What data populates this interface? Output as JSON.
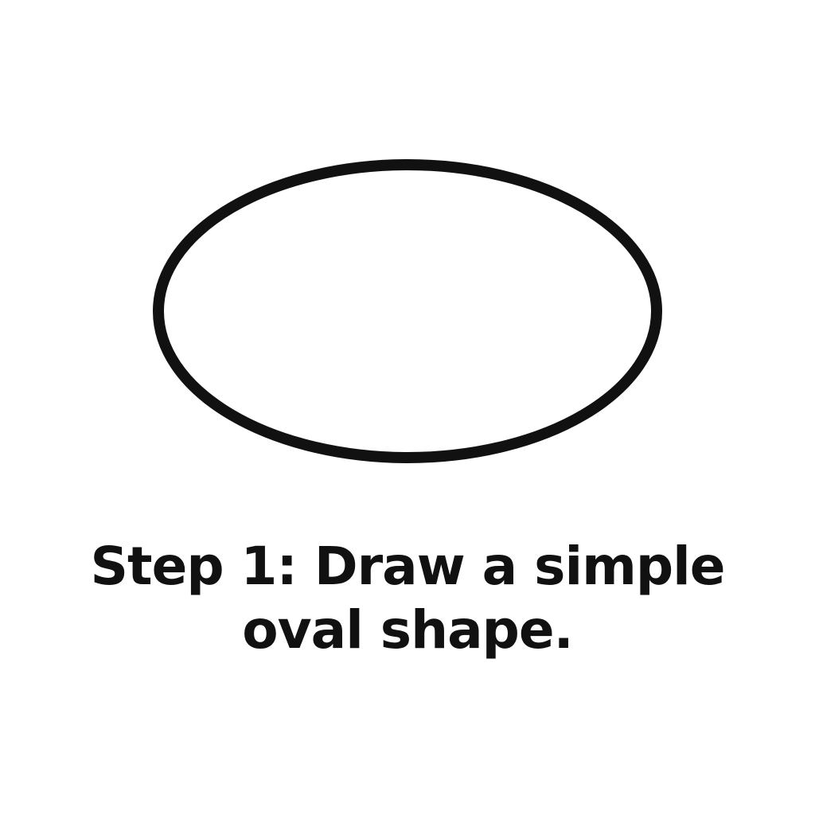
{
  "instruction": {
    "line1": "Step 1: Draw a simple",
    "line2": "oval shape."
  },
  "colors": {
    "background": "#ffffff",
    "stroke": "#111111",
    "text": "#111111"
  }
}
